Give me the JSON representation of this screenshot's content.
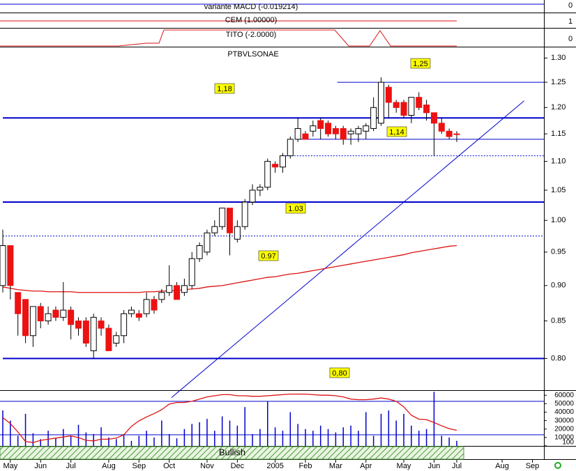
{
  "chart_data": {
    "type": "candlestick",
    "title": "PTBVLSONAE",
    "categories": [
      null,
      "May",
      null,
      null,
      null,
      "Jun",
      null,
      null,
      null,
      "Jul",
      null,
      null,
      null,
      null,
      "Aug",
      null,
      null,
      null,
      "Sep",
      null,
      null,
      null,
      "Oct",
      null,
      null,
      null,
      null,
      "Nov",
      null,
      null,
      null,
      "Dec",
      null,
      null,
      null,
      null,
      "2005",
      null,
      null,
      null,
      "Feb",
      null,
      null,
      null,
      "Mar",
      null,
      null,
      null,
      "Apr",
      null,
      null,
      null,
      null,
      "May",
      null,
      null,
      null,
      "Jun",
      null,
      null,
      "Jul",
      null,
      null,
      null,
      null,
      null,
      "Aug",
      null,
      null,
      null,
      "Sep"
    ],
    "open": [
      0.9,
      0.96,
      0.89,
      0.88,
      0.83,
      0.87,
      0.85,
      0.865,
      0.855,
      0.865,
      0.85,
      0.85,
      0.81,
      0.85,
      0.84,
      0.82,
      0.83,
      0.86,
      0.86,
      0.86,
      0.88,
      0.88,
      0.89,
      0.9,
      0.89,
      0.9,
      0.94,
      0.95,
      0.98,
      0.99,
      1.02,
      0.97,
      0.99,
      1.03,
      1.05,
      1.055,
      1.095,
      1.09,
      1.11,
      1.14,
      1.15,
      1.155,
      1.175,
      1.17,
      1.16,
      1.16,
      1.15,
      1.15,
      1.155,
      1.16,
      1.17,
      1.24,
      1.21,
      1.21,
      1.185,
      1.22,
      1.205,
      1.19,
      1.17,
      1.155,
      1.15,
      null,
      null,
      null,
      null,
      null,
      null,
      null,
      null,
      null,
      null
    ],
    "high": [
      0.985,
      0.96,
      0.89,
      0.88,
      0.87,
      0.875,
      0.87,
      0.87,
      0.905,
      0.87,
      0.855,
      0.855,
      0.86,
      0.855,
      0.845,
      0.835,
      0.865,
      0.87,
      0.865,
      0.89,
      0.885,
      0.895,
      0.93,
      0.905,
      0.91,
      0.95,
      0.965,
      0.985,
      1.0,
      1.02,
      1.02,
      1.0,
      1.035,
      1.06,
      1.06,
      1.105,
      1.1,
      1.115,
      1.145,
      1.18,
      1.155,
      1.175,
      1.18,
      1.175,
      1.165,
      1.165,
      1.16,
      1.165,
      1.17,
      1.22,
      1.26,
      1.245,
      1.215,
      1.215,
      1.22,
      1.23,
      1.215,
      1.19,
      1.18,
      1.16,
      1.155,
      null,
      null,
      null,
      null,
      null,
      null,
      null,
      null,
      null,
      null
    ],
    "low": [
      0.89,
      0.88,
      0.83,
      0.82,
      0.815,
      0.84,
      0.845,
      0.85,
      0.85,
      0.825,
      0.83,
      0.815,
      0.8,
      0.83,
      0.81,
      0.815,
      0.82,
      0.855,
      0.85,
      0.855,
      0.86,
      0.875,
      0.885,
      0.88,
      0.885,
      0.895,
      0.935,
      0.945,
      0.975,
      0.985,
      0.945,
      0.965,
      0.985,
      1.025,
      1.04,
      1.05,
      1.08,
      1.08,
      1.105,
      1.135,
      1.14,
      1.145,
      1.14,
      1.145,
      1.14,
      1.13,
      1.13,
      1.135,
      1.14,
      1.155,
      1.165,
      1.18,
      1.19,
      1.18,
      1.17,
      1.195,
      1.175,
      1.11,
      1.15,
      1.14,
      1.135,
      null,
      null,
      null,
      null,
      null,
      null,
      null,
      null,
      null,
      null
    ],
    "close": [
      0.96,
      0.9,
      0.86,
      0.83,
      0.87,
      0.85,
      0.86,
      0.855,
      0.865,
      0.845,
      0.84,
      0.82,
      0.855,
      0.84,
      0.81,
      0.83,
      0.86,
      0.865,
      0.855,
      0.88,
      0.865,
      0.89,
      0.9,
      0.88,
      0.9,
      0.94,
      0.96,
      0.98,
      0.99,
      1.02,
      0.98,
      0.99,
      1.03,
      1.05,
      1.055,
      1.1,
      1.09,
      1.11,
      1.14,
      1.16,
      1.14,
      1.165,
      1.16,
      1.15,
      1.15,
      1.14,
      1.155,
      1.16,
      1.165,
      1.2,
      1.25,
      1.21,
      1.2,
      1.185,
      1.22,
      1.2,
      1.19,
      1.17,
      1.155,
      1.145,
      1.149,
      null,
      null,
      null,
      null,
      null,
      null,
      null,
      null,
      null,
      null
    ],
    "up_color": "#ffffff",
    "down_color": "#ee1111",
    "ylim": [
      0.76,
      1.324
    ],
    "log_scale": true,
    "yticks": [
      {
        "value": 1.3,
        "label": "1.30"
      },
      1.25,
      {
        "value": 1.2,
        "label": "1.20"
      },
      1.15,
      {
        "value": 1.1,
        "label": "1.10"
      },
      1.05,
      {
        "value": 1,
        "label": "1.00"
      },
      0.95,
      {
        "value": 0.9,
        "label": "0.90"
      },
      0.85,
      {
        "value": 0.8,
        "label": "0.80"
      }
    ],
    "moving_average": {
      "color": "#dd1111",
      "values": [
        0.898,
        0.896,
        0.894,
        0.893,
        0.892,
        0.892,
        0.891,
        0.891,
        0.891,
        0.891,
        0.89,
        0.89,
        0.89,
        0.89,
        0.89,
        0.89,
        0.89,
        0.89,
        0.89,
        0.891,
        0.891,
        0.892,
        0.892,
        0.893,
        0.894,
        0.895,
        0.896,
        0.898,
        0.899,
        0.9,
        0.902,
        0.904,
        0.906,
        0.908,
        0.91,
        0.912,
        0.913,
        0.915,
        0.917,
        0.918,
        0.92,
        0.922,
        0.924,
        0.926,
        0.928,
        0.93,
        0.932,
        0.934,
        0.936,
        0.938,
        0.94,
        0.942,
        0.944,
        0.946,
        0.949,
        0.951,
        0.953,
        0.955,
        0.957,
        0.959,
        0.96,
        null,
        null,
        null,
        null,
        null,
        null,
        null,
        null,
        null,
        null
      ]
    },
    "hlines": [
      {
        "value": 1.18,
        "from": 0,
        "width": 2
      },
      {
        "value": 1.03,
        "from": 0,
        "width": 2
      },
      {
        "value": 0.8,
        "from": 0,
        "width": 2
      },
      {
        "value": 1.25,
        "from": 44.2,
        "width": 1
      },
      {
        "value": 1.14,
        "from": 38.8,
        "width": 1
      },
      {
        "value": 1.11,
        "from": 37.4,
        "width": 1,
        "dashed": true
      },
      {
        "value": 0.975,
        "from": 0,
        "width": 1,
        "dashed": true
      }
    ],
    "line_color": "#0000cc",
    "trendline": {
      "x": [
        22.3,
        68.9
      ],
      "y": [
        0.751,
        1.213
      ]
    },
    "annotations": [
      "1,25",
      "1,18",
      "1,14",
      "1.03",
      "0.97",
      "0,80"
    ],
    "indicators": [
      {
        "label": "variante MACD (-0.019214)",
        "yticks": [
          0
        ]
      },
      {
        "label": "CEM (1.00000)",
        "yticks": [
          1
        ]
      },
      {
        "label": "TITO (-2.0000)",
        "yticks": [
          0
        ]
      }
    ],
    "volume": {
      "color": "#0000cc",
      "ylim": [
        0,
        66000
      ],
      "yticks": [
        60000,
        50000,
        40000,
        30000,
        20000,
        10000,
        100
      ],
      "values": [
        42000,
        30000,
        12000,
        38000,
        15000,
        8000,
        18000,
        9000,
        20000,
        12000,
        25000,
        16000,
        14000,
        22000,
        10000,
        8000,
        14000,
        6000,
        12000,
        18000,
        10000,
        30000,
        14000,
        9000,
        20000,
        26000,
        28000,
        32000,
        18000,
        35000,
        30000,
        24000,
        46000,
        14000,
        20000,
        53000,
        22000,
        18000,
        40000,
        26000,
        20000,
        18000,
        24000,
        20000,
        16000,
        22000,
        24000,
        18000,
        40000,
        12000,
        38000,
        42000,
        30000,
        38000,
        24000,
        18000,
        20000,
        64000,
        12000,
        10000,
        6000,
        null,
        null,
        null,
        null,
        null,
        null,
        null,
        null,
        null,
        null
      ]
    },
    "stochastic": {
      "color": "#dd1111",
      "ylim": [
        0,
        100
      ],
      "levels": [
        20,
        80
      ],
      "values": [
        51,
        40,
        25,
        8,
        6,
        10,
        12,
        14,
        16,
        18,
        15,
        10,
        9,
        12,
        12,
        14,
        20,
        35,
        45,
        52,
        58,
        65,
        75,
        78,
        78,
        80,
        84,
        88,
        90,
        92,
        92,
        90,
        90,
        89,
        89,
        90,
        91,
        92,
        93,
        93,
        93,
        92,
        91,
        91,
        90,
        88,
        84,
        83,
        83,
        84,
        86,
        84,
        80,
        70,
        55,
        48,
        47,
        42,
        36,
        31,
        28,
        null,
        null,
        null,
        null,
        null,
        null,
        null,
        null,
        null,
        null
      ]
    },
    "signal": "Bullish"
  }
}
